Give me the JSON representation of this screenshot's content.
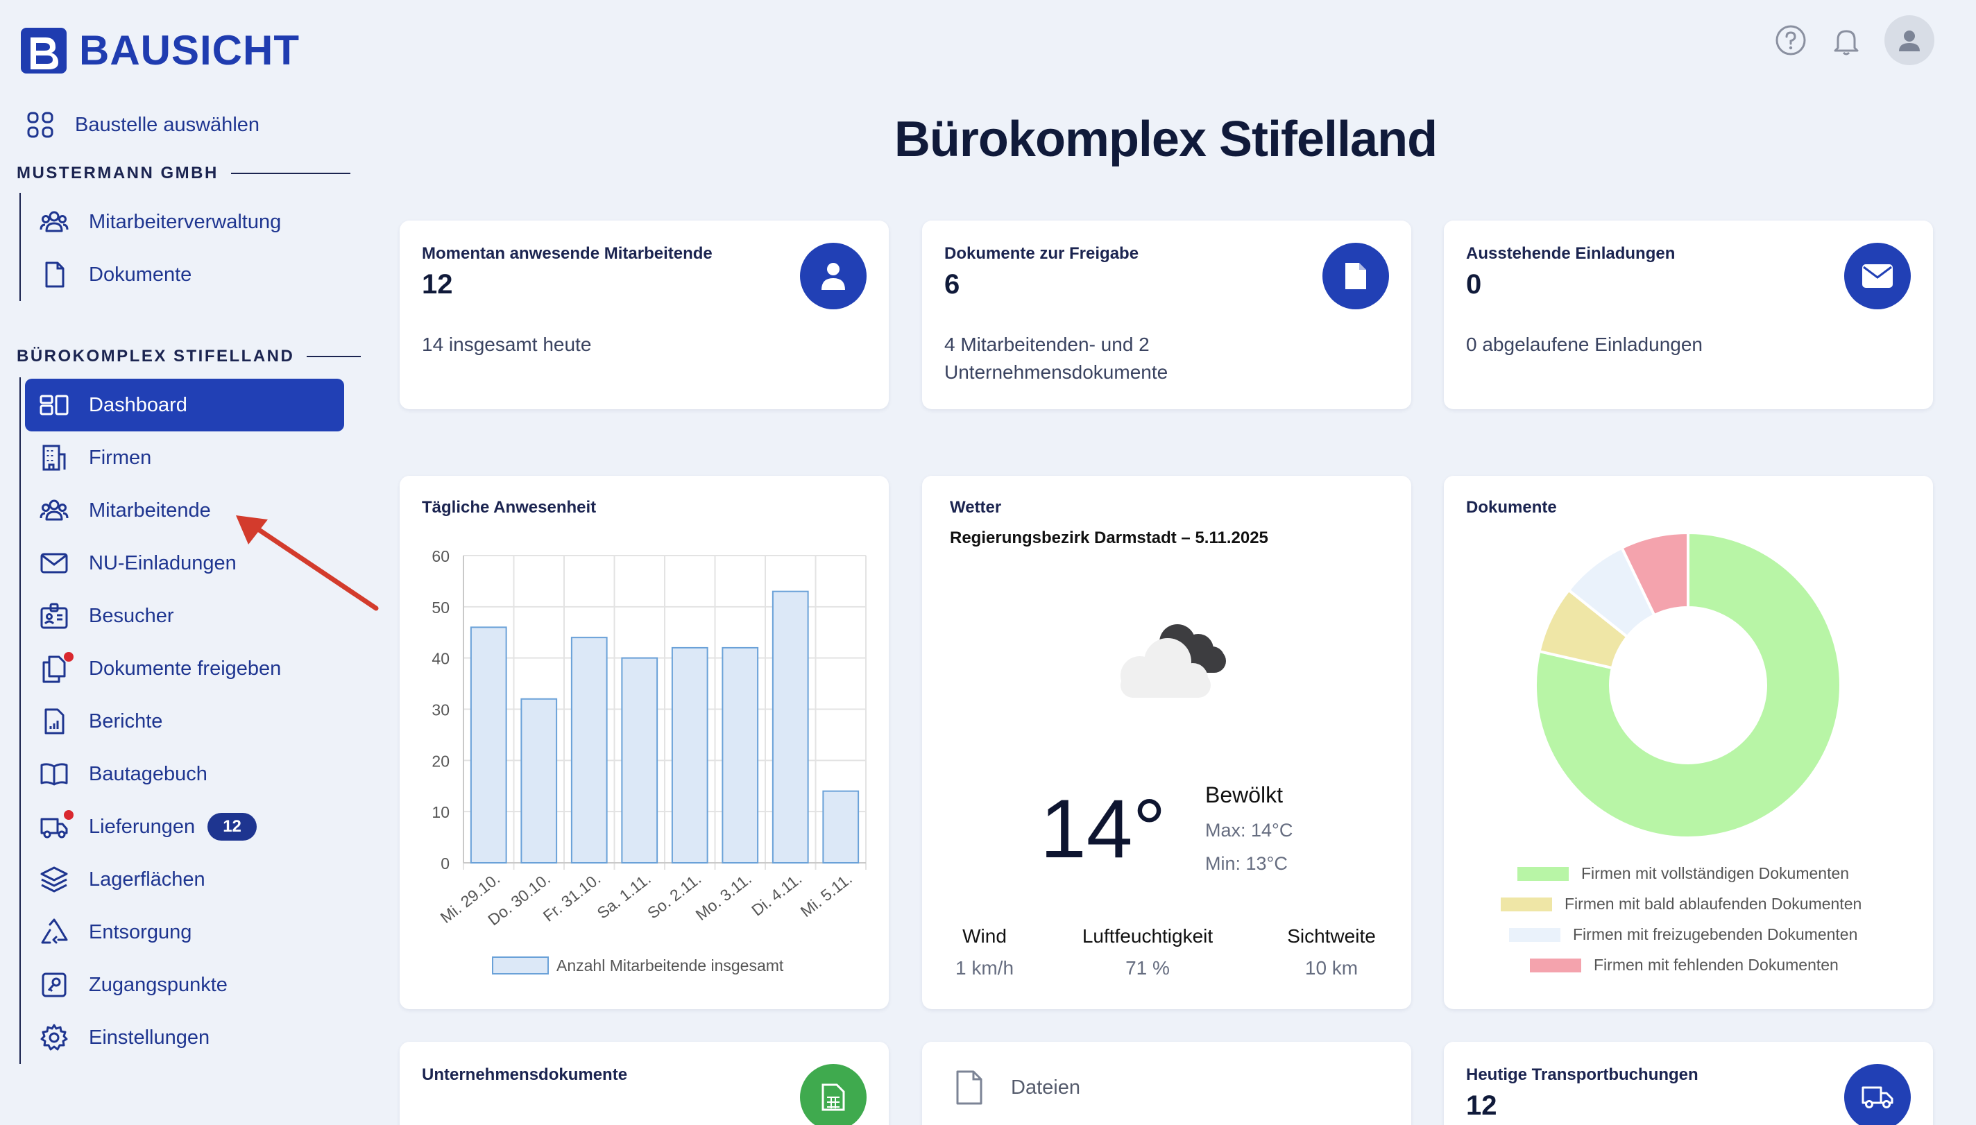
{
  "brand": {
    "name": "BAUSICHT"
  },
  "sidebar": {
    "select_site": "Baustelle auswählen",
    "org_label": "MUSTERMANN GMBH",
    "org_items": [
      {
        "label": "Mitarbeiterverwaltung",
        "icon": "users-icon"
      },
      {
        "label": "Dokumente",
        "icon": "document-icon"
      }
    ],
    "site_label": "BÜROKOMPLEX STIFELLAND",
    "site_items": [
      {
        "label": "Dashboard",
        "icon": "dashboard-icon",
        "active": true
      },
      {
        "label": "Firmen",
        "icon": "building-icon"
      },
      {
        "label": "Mitarbeitende",
        "icon": "users-icon"
      },
      {
        "label": "NU-Einladungen",
        "icon": "mail-icon"
      },
      {
        "label": "Besucher",
        "icon": "id-badge-icon"
      },
      {
        "label": "Dokumente freigeben",
        "icon": "documents-icon",
        "dot": true
      },
      {
        "label": "Berichte",
        "icon": "report-icon"
      },
      {
        "label": "Bautagebuch",
        "icon": "book-icon"
      },
      {
        "label": "Lieferungen",
        "icon": "truck-icon",
        "dot": true,
        "badge": "12"
      },
      {
        "label": "Lagerflächen",
        "icon": "layers-icon"
      },
      {
        "label": "Entsorgung",
        "icon": "recycle-icon"
      },
      {
        "label": "Zugangspunkte",
        "icon": "key-icon"
      },
      {
        "label": "Einstellungen",
        "icon": "gear-icon"
      }
    ]
  },
  "page": {
    "title": "Bürokomplex Stifelland"
  },
  "stats": [
    {
      "title": "Momentan anwesende Mitarbeitende",
      "value": "12",
      "sub": "14 insgesamt heute",
      "icon": "user-icon"
    },
    {
      "title": "Dokumente zur Freigabe",
      "value": "6",
      "sub": "4 Mitarbeitenden- und 2 Unternehmensdokumente",
      "icon": "file-icon"
    },
    {
      "title": "Ausstehende Einladungen",
      "value": "0",
      "sub": "0 abgelaufene Einladungen",
      "icon": "envelope-icon"
    }
  ],
  "attendance": {
    "title": "Tägliche Anwesenheit"
  },
  "weather": {
    "title": "Wetter",
    "location": "Regierungsbezirk Darmstadt – 5.11.2025",
    "temp": "14°",
    "condition": "Bewölkt",
    "max": "Max: 14°C",
    "min": "Min: 13°C",
    "wind_label": "Wind",
    "wind_value": "1 km/h",
    "humidity_label": "Luftfeuchtigkeit",
    "humidity_value": "71 %",
    "visibility_label": "Sichtweite",
    "visibility_value": "10 km",
    "icon": "cloud-icon"
  },
  "documents_card": {
    "title": "Dokumente"
  },
  "bottom": {
    "company_docs_title": "Unternehmensdokumente",
    "files_label": "Dateien",
    "transport_title": "Heutige Transportbuchungen",
    "transport_value": "12"
  },
  "colors": {
    "accent": "#2140b5",
    "badge_dot": "#d9282f"
  },
  "chart_data": [
    {
      "type": "bar",
      "categories": [
        "Mi. 29.10.",
        "Do. 30.10.",
        "Fr. 31.10.",
        "Sa. 1.11.",
        "So. 2.11.",
        "Mo. 3.11.",
        "Di. 4.11.",
        "Mi. 5.11."
      ],
      "series": [
        {
          "name": "Anzahl Mitarbeitende insgesamt",
          "values": [
            46,
            32,
            44,
            40,
            42,
            42,
            53,
            14
          ]
        }
      ],
      "ylim": [
        0,
        60
      ],
      "yticks": [
        0,
        10,
        20,
        30,
        40,
        50,
        60
      ],
      "grid": true,
      "legend": "bottom"
    },
    {
      "type": "pie",
      "donut": true,
      "labels": [
        "Firmen mit vollständigen Dokumenten",
        "Firmen mit bald ablaufenden Dokumenten",
        "Firmen mit freizugebenden Dokumenten",
        "Firmen mit fehlenden Dokumenten"
      ],
      "values": [
        77,
        7,
        7,
        7
      ],
      "colors": [
        "#b8f5a6",
        "#efe6a6",
        "#eaf2fb",
        "#f4a3ad"
      ],
      "legend": "bottom"
    }
  ]
}
